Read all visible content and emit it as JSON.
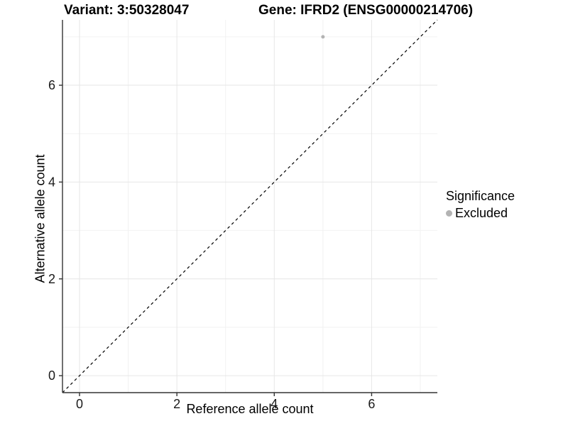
{
  "header": {
    "title_left": "Variant: 3:50328047",
    "title_right": "Gene: IFRD2 (ENSG00000214706)"
  },
  "chart_data": {
    "type": "scatter",
    "title_left": "Variant: 3:50328047",
    "title_right": "Gene: IFRD2 (ENSG00000214706)",
    "xlabel": "Reference allele count",
    "ylabel": "Alternative allele count",
    "xlim": [
      -0.35,
      7.35
    ],
    "ylim": [
      -0.35,
      7.35
    ],
    "x_ticks": [
      0,
      2,
      4,
      6
    ],
    "y_ticks": [
      0,
      2,
      4,
      6
    ],
    "x_minor_gridlines": [
      1,
      3,
      5,
      7
    ],
    "y_minor_gridlines": [
      1,
      3,
      5,
      7
    ],
    "points": [
      {
        "x": 5,
        "y": 7,
        "series": "Excluded"
      }
    ],
    "reference_line": {
      "type": "identity",
      "equation": "y = x",
      "style": "dashed",
      "color": "#000000"
    },
    "grid": {
      "major": true,
      "minor": true
    },
    "legend": {
      "position": "right",
      "title": "Significance",
      "items": [
        {
          "label": "Excluded",
          "color": "#b3b3b3"
        }
      ]
    },
    "colors": {
      "point": "#b3b3b3",
      "grid_major": "#e6e6e6",
      "grid_minor": "#f2f2f2",
      "axis_line": "#333333",
      "tick_label": "#1a1a1a"
    },
    "point_radius": 2.5
  }
}
